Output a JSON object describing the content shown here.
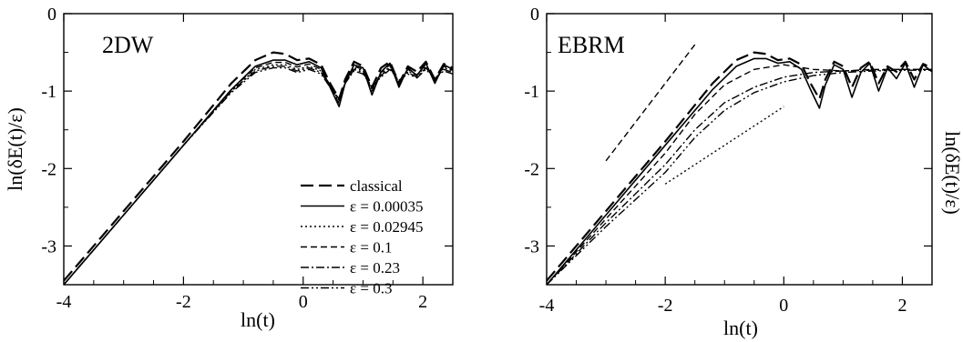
{
  "chart_data": [
    {
      "type": "line",
      "panel_label": "2DW",
      "xlabel": "ln(t)",
      "ylabel": "ln(δE(t)/ε)",
      "xlim": [
        -4,
        2.5
      ],
      "ylim": [
        -3.5,
        0
      ],
      "xticks": [
        -4,
        -2,
        0,
        2
      ],
      "yticks": [
        -3,
        -2,
        -1,
        0
      ],
      "grid": false,
      "legend_position": "lower-right",
      "series": [
        {
          "name": "classical",
          "dash": "14,6",
          "width": 2.2,
          "x": [
            -4,
            -3,
            -2,
            -1.2,
            -0.8,
            -0.5,
            -0.3,
            -0.1,
            0.1,
            0.3,
            0.45,
            0.6,
            0.7,
            0.85,
            1.0,
            1.15,
            1.3,
            1.45,
            1.6,
            1.75,
            1.9,
            2.05,
            2.2,
            2.35,
            2.5
          ],
          "y": [
            -3.45,
            -2.55,
            -1.65,
            -0.9,
            -0.6,
            -0.5,
            -0.52,
            -0.6,
            -0.58,
            -0.66,
            -0.9,
            -1.1,
            -0.85,
            -0.62,
            -0.68,
            -0.95,
            -0.7,
            -0.62,
            -0.9,
            -0.68,
            -0.75,
            -0.62,
            -0.85,
            -0.65,
            -0.7
          ]
        },
        {
          "name": "ε = 0.00035",
          "dash": "",
          "width": 1.6,
          "x": [
            -4,
            -3,
            -2,
            -1.2,
            -0.8,
            -0.5,
            -0.3,
            -0.1,
            0.1,
            0.3,
            0.45,
            0.6,
            0.7,
            0.85,
            1.0,
            1.15,
            1.3,
            1.45,
            1.6,
            1.75,
            1.9,
            2.05,
            2.2,
            2.35,
            2.5
          ],
          "y": [
            -3.5,
            -2.6,
            -1.7,
            -0.98,
            -0.68,
            -0.6,
            -0.6,
            -0.66,
            -0.62,
            -0.7,
            -0.95,
            -1.2,
            -0.9,
            -0.66,
            -0.7,
            -1.05,
            -0.75,
            -0.64,
            -0.95,
            -0.7,
            -0.8,
            -0.64,
            -0.9,
            -0.66,
            -0.72
          ]
        },
        {
          "name": "ε = 0.02945",
          "dash": "2,3",
          "width": 1.4,
          "x": [
            -4,
            -3,
            -2,
            -1.2,
            -0.8,
            -0.5,
            -0.3,
            -0.1,
            0.1,
            0.3,
            0.45,
            0.6,
            0.7,
            0.85,
            1.0,
            1.15,
            1.3,
            1.45,
            1.6,
            1.75,
            1.9,
            2.05,
            2.2,
            2.35,
            2.5
          ],
          "y": [
            -3.5,
            -2.6,
            -1.7,
            -1.0,
            -0.72,
            -0.66,
            -0.66,
            -0.72,
            -0.68,
            -0.74,
            -0.92,
            -1.15,
            -0.88,
            -0.7,
            -0.74,
            -0.98,
            -0.78,
            -0.68,
            -0.9,
            -0.74,
            -0.8,
            -0.68,
            -0.86,
            -0.7,
            -0.74
          ]
        },
        {
          "name": "ε = 0.1",
          "dash": "7,4",
          "width": 1.4,
          "x": [
            -4,
            -3,
            -2,
            -1.2,
            -0.8,
            -0.5,
            -0.3,
            -0.1,
            0.1,
            0.3,
            0.45,
            0.6,
            0.7,
            0.85,
            1.0,
            1.15,
            1.3,
            1.45,
            1.6,
            1.75,
            1.9,
            2.05,
            2.2,
            2.35,
            2.5
          ],
          "y": [
            -3.5,
            -2.6,
            -1.7,
            -0.98,
            -0.7,
            -0.63,
            -0.63,
            -0.69,
            -0.65,
            -0.72,
            -0.93,
            -1.17,
            -0.88,
            -0.68,
            -0.72,
            -1.0,
            -0.76,
            -0.66,
            -0.92,
            -0.72,
            -0.79,
            -0.66,
            -0.87,
            -0.68,
            -0.73
          ]
        },
        {
          "name": "ε = 0.23",
          "dash": "9,3,2,3",
          "width": 1.4,
          "x": [
            -4,
            -3,
            -2,
            -1.2,
            -0.8,
            -0.5,
            -0.3,
            -0.1,
            0.1,
            0.3,
            0.45,
            0.6,
            0.7,
            0.85,
            1.0,
            1.15,
            1.3,
            1.45,
            1.6,
            1.75,
            1.9,
            2.05,
            2.2,
            2.35,
            2.5
          ],
          "y": [
            -3.5,
            -2.6,
            -1.7,
            -1.0,
            -0.74,
            -0.68,
            -0.68,
            -0.74,
            -0.7,
            -0.76,
            -0.94,
            -1.12,
            -0.9,
            -0.72,
            -0.76,
            -0.96,
            -0.8,
            -0.7,
            -0.88,
            -0.76,
            -0.82,
            -0.7,
            -0.84,
            -0.72,
            -0.76
          ]
        },
        {
          "name": "ε = 0.3",
          "dash": "9,3,2,3,2,3",
          "width": 1.4,
          "x": [
            -4,
            -3,
            -2,
            -1.2,
            -0.8,
            -0.5,
            -0.3,
            -0.1,
            0.1,
            0.3,
            0.45,
            0.6,
            0.7,
            0.85,
            1.0,
            1.15,
            1.3,
            1.45,
            1.6,
            1.75,
            1.9,
            2.05,
            2.2,
            2.35,
            2.5
          ],
          "y": [
            -3.5,
            -2.6,
            -1.7,
            -1.02,
            -0.76,
            -0.7,
            -0.7,
            -0.76,
            -0.72,
            -0.78,
            -0.95,
            -1.1,
            -0.9,
            -0.74,
            -0.78,
            -0.94,
            -0.82,
            -0.72,
            -0.86,
            -0.78,
            -0.83,
            -0.72,
            -0.84,
            -0.74,
            -0.78
          ]
        }
      ]
    },
    {
      "type": "line",
      "panel_label": "EBRM",
      "xlabel": "ln(t)",
      "ylabel": "ln(δE(t)/ε)",
      "xlim": [
        -4,
        2.5
      ],
      "ylim": [
        -3.5,
        0
      ],
      "xticks": [
        -4,
        -2,
        0,
        2
      ],
      "yticks": [
        -3,
        -2,
        -1,
        0
      ],
      "grid": false,
      "series": [
        {
          "dash": "14,6",
          "width": 2.2,
          "x": [
            -4,
            -3,
            -2,
            -1.2,
            -0.8,
            -0.5,
            -0.3,
            -0.1,
            0.1,
            0.3,
            0.45,
            0.6,
            0.7,
            0.85,
            1.0,
            1.15,
            1.3,
            1.45,
            1.6,
            1.75,
            1.9,
            2.05,
            2.2,
            2.35,
            2.5
          ],
          "y": [
            -3.45,
            -2.55,
            -1.65,
            -0.9,
            -0.6,
            -0.5,
            -0.52,
            -0.6,
            -0.58,
            -0.66,
            -0.9,
            -1.1,
            -0.85,
            -0.62,
            -0.68,
            -0.95,
            -0.7,
            -0.62,
            -0.9,
            -0.68,
            -0.75,
            -0.62,
            -0.85,
            -0.65,
            -0.7
          ]
        },
        {
          "dash": "",
          "width": 1.6,
          "x": [
            -4,
            -3,
            -2,
            -1.2,
            -0.8,
            -0.5,
            -0.3,
            -0.1,
            0.1,
            0.3,
            0.45,
            0.6,
            0.7,
            0.85,
            1.0,
            1.15,
            1.3,
            1.45,
            1.6,
            1.75,
            1.9,
            2.05,
            2.2,
            2.35,
            2.5
          ],
          "y": [
            -3.5,
            -2.6,
            -1.7,
            -0.98,
            -0.68,
            -0.58,
            -0.58,
            -0.64,
            -0.62,
            -0.72,
            -0.98,
            -1.22,
            -0.92,
            -0.66,
            -0.72,
            -1.08,
            -0.76,
            -0.64,
            -1.0,
            -0.7,
            -0.84,
            -0.64,
            -0.95,
            -0.66,
            -0.75
          ]
        },
        {
          "dash": "7,4",
          "width": 1.4,
          "x": [
            -4,
            -3,
            -2,
            -1.5,
            -1.0,
            -0.5,
            0,
            0.5,
            1.0,
            1.5,
            2.0,
            2.5
          ],
          "y": [
            -3.5,
            -2.65,
            -1.8,
            -1.3,
            -0.92,
            -0.72,
            -0.66,
            -0.72,
            -0.74,
            -0.72,
            -0.72,
            -0.72
          ]
        },
        {
          "dash": "9,3,2,3",
          "width": 1.4,
          "x": [
            -4,
            -3,
            -2,
            -1.5,
            -1.0,
            -0.5,
            0,
            0.5,
            1.0,
            1.5,
            2.0,
            2.5
          ],
          "y": [
            -3.5,
            -2.7,
            -1.95,
            -1.5,
            -1.15,
            -0.95,
            -0.82,
            -0.76,
            -0.74,
            -0.73,
            -0.72,
            -0.72
          ]
        },
        {
          "dash": "9,3,2,3,2,3",
          "width": 1.4,
          "x": [
            -4,
            -3,
            -2,
            -1.5,
            -1.0,
            -0.5,
            0,
            0.5,
            1.0,
            1.5,
            2.0,
            2.5
          ],
          "y": [
            -3.5,
            -2.75,
            -2.05,
            -1.6,
            -1.25,
            -1.02,
            -0.88,
            -0.8,
            -0.76,
            -0.74,
            -0.73,
            -0.73
          ]
        },
        {
          "dash": "7,4",
          "width": 1.4,
          "x": [
            -3,
            -1.5
          ],
          "y": [
            -1.9,
            -0.4
          ]
        },
        {
          "dash": "2,3",
          "width": 1.4,
          "x": [
            -2,
            0
          ],
          "y": [
            -2.2,
            -1.2
          ]
        }
      ]
    }
  ]
}
